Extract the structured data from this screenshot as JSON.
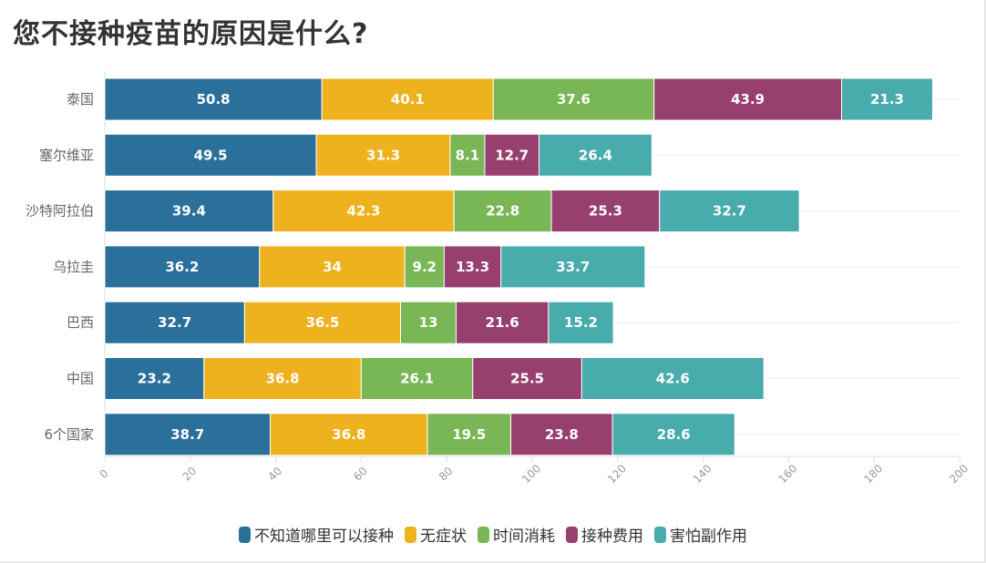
{
  "title": "您不接种疫苗的原因是什么?",
  "chart_data": {
    "type": "bar",
    "orientation": "horizontal",
    "stacked": true,
    "title": "您不接种疫苗的原因是什么?",
    "categories": [
      "泰国",
      "塞尔维亚",
      "沙特阿拉伯",
      "乌拉圭",
      "巴西",
      "中国",
      "6个国家"
    ],
    "series": [
      {
        "name": "不知道哪里可以接种",
        "color": "#2b6f9b",
        "values": [
          50.8,
          49.5,
          39.4,
          36.2,
          32.7,
          23.2,
          38.7
        ]
      },
      {
        "name": "无症状",
        "color": "#eeb21f",
        "values": [
          40.1,
          31.3,
          42.3,
          34,
          36.5,
          36.8,
          36.8
        ]
      },
      {
        "name": "时间消耗",
        "color": "#79b655",
        "values": [
          37.6,
          8.1,
          22.8,
          9.2,
          13,
          26.1,
          19.5
        ]
      },
      {
        "name": "接种费用",
        "color": "#97406f",
        "values": [
          43.9,
          12.7,
          25.3,
          13.3,
          21.6,
          25.5,
          23.8
        ]
      },
      {
        "name": "害怕副作用",
        "color": "#48abac",
        "values": [
          21.3,
          26.4,
          32.7,
          33.7,
          15.2,
          42.6,
          28.6
        ]
      }
    ],
    "xlim": [
      0,
      200
    ],
    "xticks": [
      "0",
      "20",
      "40",
      "60",
      "80",
      "100",
      "120",
      "140",
      "160",
      "180",
      "200"
    ],
    "grid": true,
    "legend_position": "bottom"
  }
}
